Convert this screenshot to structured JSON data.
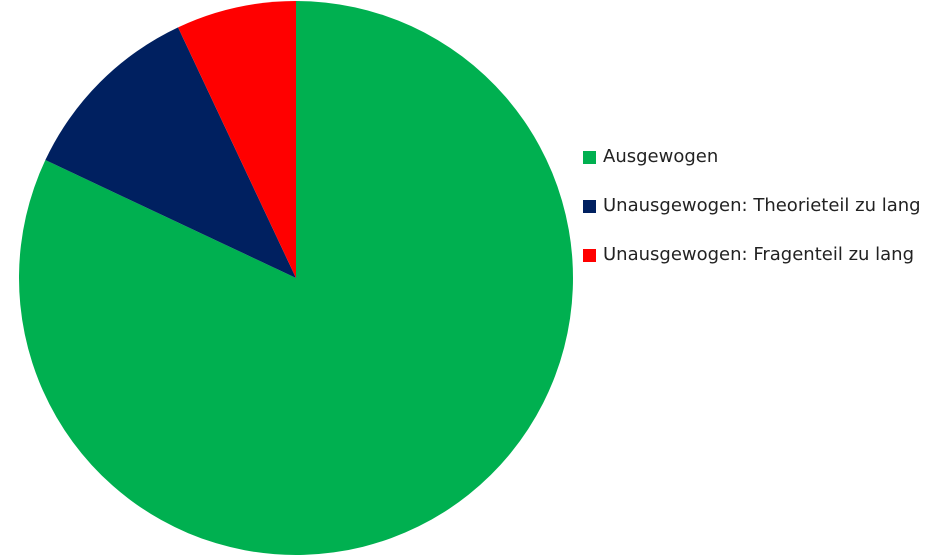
{
  "chart_data": {
    "type": "pie",
    "categories": [
      "Ausgewogen",
      "Unausgewogen: Theorieteil zu lang",
      "Unausgewogen: Fragenteil zu lang"
    ],
    "values": [
      82,
      11,
      7
    ],
    "colors": [
      "#00b050",
      "#002060",
      "#ff0000"
    ],
    "legend": "right"
  }
}
